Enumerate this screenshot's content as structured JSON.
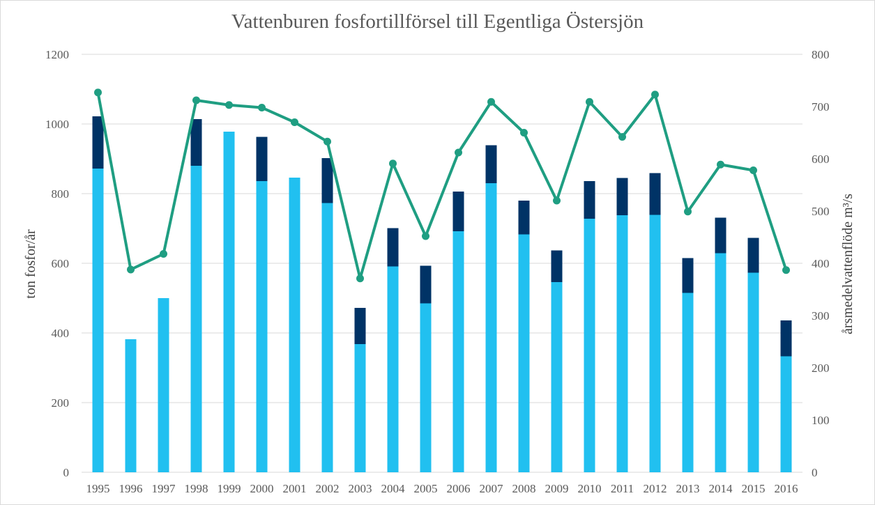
{
  "chart_data": {
    "type": "bar",
    "title": "Vattenburen fosfortillförsel till Egentliga Östersjön",
    "ylabel": "ton fosfor/år",
    "y2label": "årsmedelvattenflöde m³/s",
    "ylim": [
      0,
      1200
    ],
    "y2lim": [
      0,
      800
    ],
    "yticks": [
      0,
      200,
      400,
      600,
      800,
      1000,
      1200
    ],
    "y2ticks": [
      0,
      100,
      200,
      300,
      400,
      500,
      600,
      700,
      800
    ],
    "grid": true,
    "legend": "none",
    "categories": [
      "1995",
      "1996",
      "1997",
      "1998",
      "1999",
      "2000",
      "2001",
      "2002",
      "2003",
      "2004",
      "2005",
      "2006",
      "2007",
      "2008",
      "2009",
      "2010",
      "2011",
      "2012",
      "2013",
      "2014",
      "2015",
      "2016"
    ],
    "series": [
      {
        "kind": "bar-stacked",
        "color": "#21c0f0",
        "values": [
          872,
          382,
          500,
          880,
          978,
          836,
          846,
          773,
          368,
          591,
          485,
          692,
          830,
          683,
          546,
          728,
          738,
          739,
          515,
          629,
          573,
          333
        ]
      },
      {
        "kind": "bar-stacked",
        "color": "#003366",
        "values": [
          150,
          0,
          0,
          134,
          0,
          127,
          0,
          129,
          104,
          110,
          108,
          114,
          109,
          97,
          91,
          108,
          107,
          120,
          100,
          102,
          100,
          103
        ]
      },
      {
        "kind": "line",
        "axis": "right",
        "color": "#1f9e82",
        "values": [
          727,
          388,
          418,
          712,
          703,
          698,
          670,
          633,
          371,
          591,
          452,
          612,
          709,
          650,
          520,
          709,
          642,
          723,
          499,
          589,
          578,
          387
        ]
      }
    ]
  }
}
